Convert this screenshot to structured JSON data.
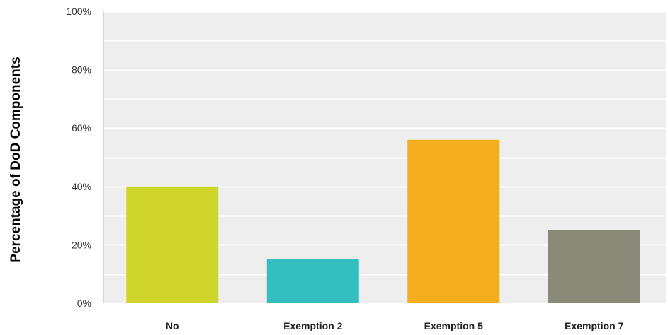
{
  "chart_data": {
    "type": "bar",
    "categories": [
      "No",
      "Exemption 2",
      "Exemption 5",
      "Exemption 7"
    ],
    "values": [
      40,
      15,
      56,
      25
    ],
    "bar_colors": [
      "#cfd52a",
      "#33bec0",
      "#f5ae1f",
      "#8a8a78"
    ],
    "ylabel": "Percentage of DoD Components",
    "yticks": [
      "0%",
      "20%",
      "40%",
      "60%",
      "80%",
      "100%"
    ],
    "ylim": [
      0,
      100
    ],
    "grid": true,
    "plot_background": "#eeeeee",
    "grid_color": "#ffffff"
  }
}
